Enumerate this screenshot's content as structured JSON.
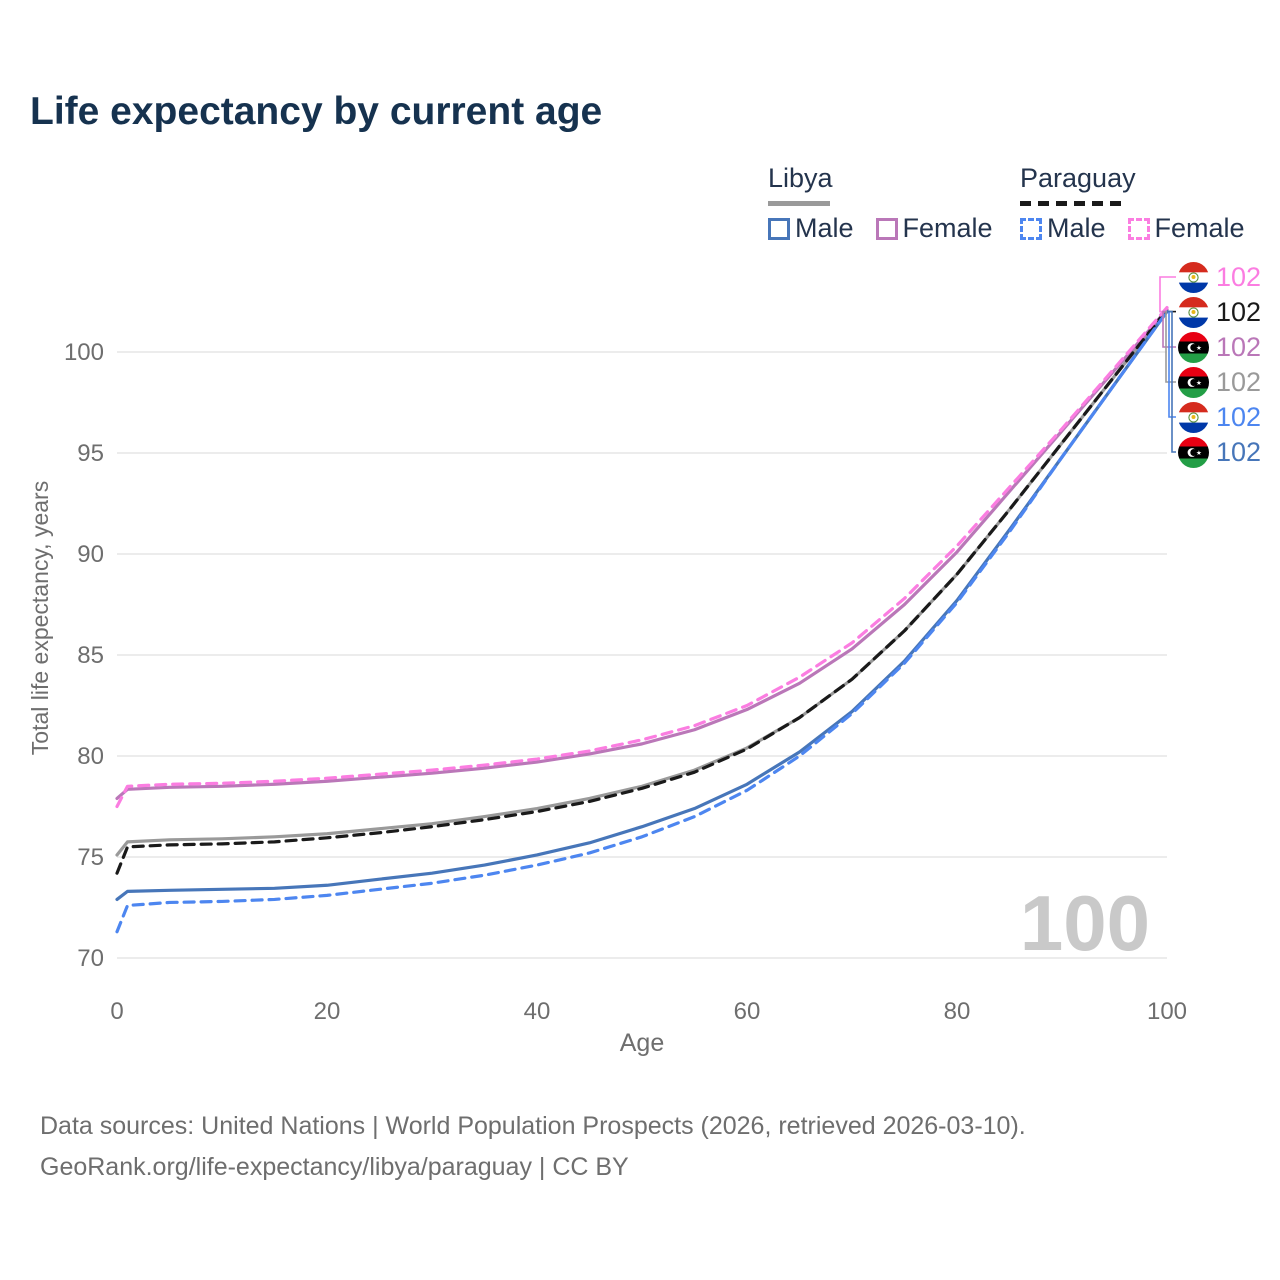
{
  "title": "Life expectancy by current age",
  "legend": {
    "groups": [
      {
        "label": "Libya",
        "line_style": "solid",
        "line_color": "#9a9a9a",
        "items": [
          {
            "label": "Male",
            "color": "#4776b9"
          },
          {
            "label": "Female",
            "color": "#ba77b8"
          }
        ]
      },
      {
        "label": "Paraguay",
        "line_style": "dashed",
        "line_color": "#1a1a1a",
        "items": [
          {
            "label": "Male",
            "color": "#4d86f0"
          },
          {
            "label": "Female",
            "color": "#fb7de1"
          }
        ]
      }
    ]
  },
  "chart_data": {
    "type": "line",
    "title": "Life expectancy by current age",
    "xlabel": "Age",
    "ylabel": "Total life expectancy, years",
    "xlim": [
      0,
      100
    ],
    "ylim": [
      70,
      102.5
    ],
    "xticks": [
      0,
      20,
      40,
      60,
      80,
      100
    ],
    "yticks": [
      70,
      75,
      80,
      85,
      90,
      95,
      100
    ],
    "grid": "horizontal-only",
    "legend_position": "top-right",
    "x": [
      0,
      1,
      5,
      10,
      15,
      20,
      25,
      30,
      35,
      40,
      45,
      50,
      55,
      60,
      65,
      70,
      75,
      80,
      85,
      90,
      95,
      100
    ],
    "series": [
      {
        "name": "Libya Total",
        "country": "libya",
        "sex": "both",
        "color": "#9a9a9a",
        "dashed": false,
        "values": [
          75.1,
          75.75,
          75.85,
          75.9,
          76.0,
          76.15,
          76.4,
          76.65,
          77.0,
          77.4,
          77.9,
          78.5,
          79.3,
          80.4,
          81.9,
          83.8,
          86.2,
          89.0,
          92.2,
          95.5,
          98.8,
          102.05
        ]
      },
      {
        "name": "Libya Female",
        "country": "libya",
        "sex": "female",
        "color": "#ba77b8",
        "dashed": false,
        "values": [
          77.9,
          78.35,
          78.45,
          78.5,
          78.6,
          78.75,
          78.95,
          79.15,
          79.4,
          79.7,
          80.1,
          80.6,
          81.3,
          82.3,
          83.6,
          85.3,
          87.5,
          90.1,
          93.1,
          96.1,
          99.1,
          102.1
        ]
      },
      {
        "name": "Libya Male",
        "country": "libya",
        "sex": "male",
        "color": "#4776b9",
        "dashed": false,
        "values": [
          72.9,
          73.3,
          73.35,
          73.4,
          73.45,
          73.6,
          73.9,
          74.2,
          74.6,
          75.1,
          75.7,
          76.5,
          77.4,
          78.6,
          80.2,
          82.2,
          84.7,
          87.7,
          91.2,
          94.8,
          98.4,
          102.0
        ]
      },
      {
        "name": "Paraguay Total",
        "country": "paraguay",
        "sex": "both",
        "color": "#1a1a1a",
        "dashed": true,
        "values": [
          74.2,
          75.5,
          75.6,
          75.65,
          75.75,
          75.95,
          76.2,
          76.5,
          76.85,
          77.25,
          77.75,
          78.4,
          79.2,
          80.35,
          81.9,
          83.8,
          86.2,
          89.0,
          92.2,
          95.5,
          98.8,
          102.1
        ]
      },
      {
        "name": "Paraguay Female",
        "country": "paraguay",
        "sex": "female",
        "color": "#fb7de1",
        "dashed": true,
        "values": [
          77.5,
          78.5,
          78.6,
          78.65,
          78.75,
          78.9,
          79.1,
          79.3,
          79.55,
          79.85,
          80.25,
          80.8,
          81.5,
          82.5,
          83.9,
          85.6,
          87.8,
          90.4,
          93.3,
          96.2,
          99.2,
          102.2
        ]
      },
      {
        "name": "Paraguay Male",
        "country": "paraguay",
        "sex": "male",
        "color": "#4d86f0",
        "dashed": true,
        "values": [
          71.3,
          72.6,
          72.75,
          72.8,
          72.9,
          73.1,
          73.4,
          73.7,
          74.1,
          74.6,
          75.2,
          76.0,
          77.0,
          78.3,
          80.0,
          82.1,
          84.6,
          87.6,
          91.1,
          94.8,
          98.4,
          102.0
        ]
      }
    ],
    "end_labels": [
      {
        "flag": "paraguay",
        "text": "102",
        "color": "#fb7de1",
        "series": "Paraguay Female"
      },
      {
        "flag": "paraguay",
        "text": "102",
        "color": "#1a1a1a",
        "series": "Paraguay Total"
      },
      {
        "flag": "libya",
        "text": "102",
        "color": "#ba77b8",
        "series": "Libya Female"
      },
      {
        "flag": "libya",
        "text": "102",
        "color": "#9a9a9a",
        "series": "Libya Total"
      },
      {
        "flag": "paraguay",
        "text": "102",
        "color": "#4d86f0",
        "series": "Paraguay Male"
      },
      {
        "flag": "libya",
        "text": "102",
        "color": "#4776b9",
        "series": "Libya Male"
      }
    ],
    "current_age_display": "100"
  },
  "footer": {
    "line1": "Data sources: United Nations | World Population Prospects (2026, retrieved 2026-03-10).",
    "line2": "GeoRank.org/life-expectancy/libya/paraguay | CC BY"
  },
  "colors": {
    "title_text": "#16324f",
    "legend_text": "#24344d",
    "axis_text": "#6e6e6e",
    "gridline": "#e5e5e5",
    "watermark": "#c9c9c9",
    "libya_male": "#4776b9",
    "libya_female": "#ba77b8",
    "libya_total": "#9a9a9a",
    "paraguay_male": "#4d86f0",
    "paraguay_female": "#fb7de1",
    "paraguay_total": "#1a1a1a"
  }
}
